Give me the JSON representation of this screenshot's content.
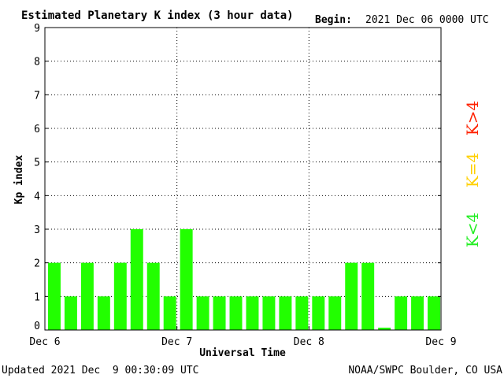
{
  "header": {
    "title": "Estimated Planetary K index (3 hour data)",
    "begin_label": "Begin:",
    "begin_value": "2021 Dec 06 0000 UTC"
  },
  "footer": {
    "updated": "Updated 2021 Dec  9 00:30:09 UTC",
    "credit": "NOAA/SWPC Boulder, CO USA"
  },
  "legend": [
    {
      "text": "K>4",
      "color": "#ff2200"
    },
    {
      "text": "K=4",
      "color": "#ffd000"
    },
    {
      "text": "K<4",
      "color": "#22ee22"
    }
  ],
  "chart_data": {
    "type": "bar",
    "title": "Estimated Planetary K index (3 hour data)",
    "xlabel": "Universal Time",
    "ylabel": "Kp index",
    "ylim": [
      0,
      9
    ],
    "yticks": [
      "0",
      "1",
      "2",
      "3",
      "4",
      "5",
      "6",
      "7",
      "8",
      "9"
    ],
    "xticks": [
      "Dec 6",
      "Dec 7",
      "Dec 8",
      "Dec 9"
    ],
    "bar_color": "#22ff00",
    "grid": "dotted",
    "values": [
      2,
      1,
      2,
      1,
      2,
      3,
      2,
      1,
      3,
      1,
      1,
      1,
      1,
      1,
      1,
      1,
      1,
      1,
      2,
      2,
      0.07,
      1,
      1,
      1
    ]
  }
}
